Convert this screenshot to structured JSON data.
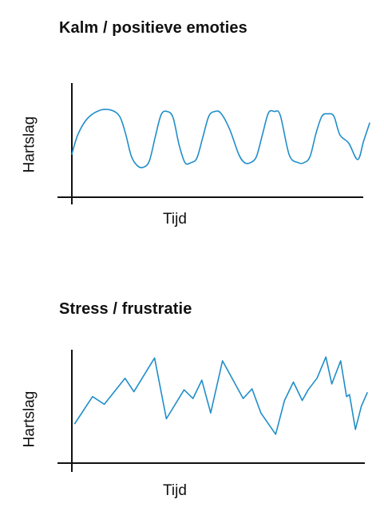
{
  "colors": {
    "line": "#1f8ec9",
    "axis": "#111111"
  },
  "chart_data": [
    {
      "type": "line",
      "title": "Kalm / positieve emoties",
      "xlabel": "Tijd",
      "ylabel": "Hartslag",
      "xlim": [
        0,
        100
      ],
      "ylim": [
        0,
        100
      ],
      "grid": false,
      "series": [
        {
          "x": [
            0,
            2,
            5,
            9,
            13,
            16,
            18,
            20,
            22,
            24,
            26,
            28,
            30,
            32,
            34,
            36,
            38,
            40,
            42,
            44,
            46,
            48,
            50,
            53,
            56,
            58,
            60,
            62,
            64,
            66,
            68,
            70,
            73,
            76,
            78,
            80,
            82,
            84,
            86,
            88,
            90,
            93,
            96,
            98,
            100
          ],
          "y": [
            33,
            58,
            78,
            89,
            90,
            82,
            60,
            30,
            18,
            16,
            24,
            55,
            84,
            88,
            80,
            45,
            22,
            22,
            28,
            55,
            82,
            88,
            86,
            65,
            33,
            22,
            22,
            30,
            58,
            86,
            88,
            83,
            32,
            22,
            22,
            30,
            60,
            82,
            85,
            82,
            58,
            47,
            26,
            50,
            73
          ]
        }
      ]
    },
    {
      "type": "line",
      "title": "Stress / frustratie",
      "xlabel": "Tijd",
      "ylabel": "Hartslag",
      "xlim": [
        0,
        100
      ],
      "ylim": [
        0,
        100
      ],
      "grid": false,
      "series": [
        {
          "x": [
            1,
            7,
            11,
            18,
            21,
            28,
            32,
            38,
            41,
            44,
            47,
            51,
            58,
            61,
            64,
            69,
            72,
            75,
            78,
            80,
            83,
            86,
            88,
            91,
            93,
            94,
            96,
            98,
            100
          ],
          "y": [
            26,
            54,
            46,
            73,
            59,
            94,
            31,
            61,
            52,
            71,
            37,
            91,
            52,
            62,
            37,
            15,
            50,
            69,
            50,
            61,
            73,
            95,
            67,
            91,
            54,
            56,
            20,
            44,
            58
          ]
        }
      ]
    }
  ]
}
